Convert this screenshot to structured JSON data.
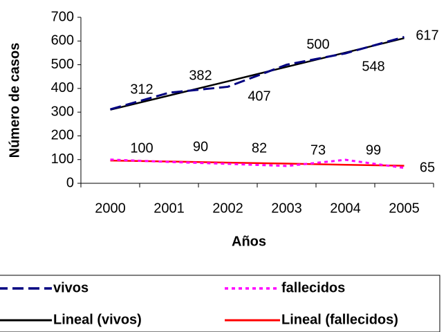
{
  "chart_data": {
    "type": "line",
    "x_label": "Años",
    "y_label": "Número de casos",
    "categories": [
      "2000",
      "2001",
      "2002",
      "2003",
      "2004",
      "2005"
    ],
    "ylim": [
      0,
      700
    ],
    "yticks": [
      0,
      100,
      200,
      300,
      400,
      500,
      600,
      700
    ],
    "legend_position": "bottom",
    "series": [
      {
        "name": "vivos",
        "color": "#000080",
        "style": "dashed",
        "values": [
          312,
          382,
          407,
          500,
          548,
          617
        ],
        "labels": true
      },
      {
        "name": "fallecidos",
        "color": "#FF00FF",
        "style": "dotted",
        "values": [
          100,
          90,
          82,
          73,
          99,
          65
        ],
        "labels": true
      },
      {
        "name": "Lineal (vivos)",
        "color": "#000000",
        "style": "solid",
        "values": [
          310,
          370,
          430,
          491,
          551,
          612
        ],
        "labels": false
      },
      {
        "name": "Lineal (fallecidos)",
        "color": "#FF0000",
        "style": "solid",
        "values": [
          96,
          92,
          87,
          83,
          78,
          74
        ],
        "labels": false
      }
    ]
  }
}
